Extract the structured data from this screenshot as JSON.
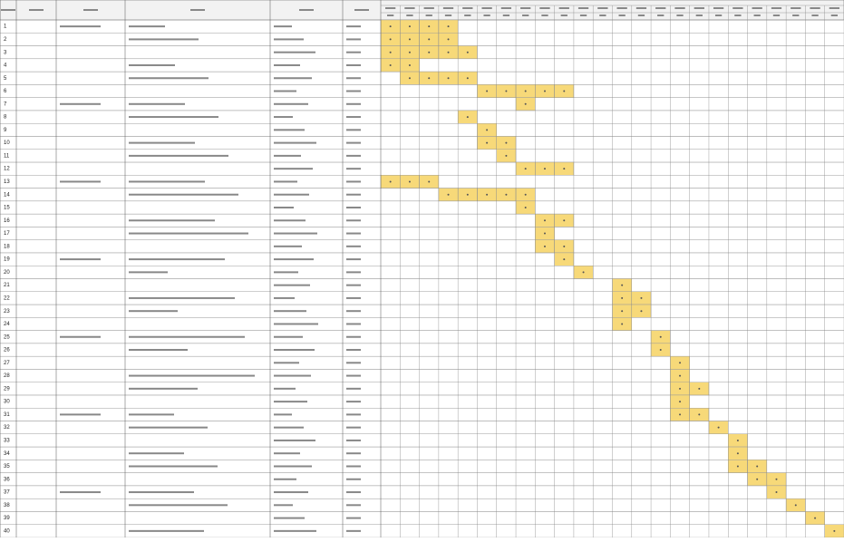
{
  "rows": [
    {
      "no": 1,
      "bars": [
        0,
        1,
        2,
        3
      ]
    },
    {
      "no": 2,
      "bars": [
        0,
        1,
        2,
        3
      ]
    },
    {
      "no": 3,
      "bars": [
        0,
        1,
        2,
        3,
        4
      ]
    },
    {
      "no": 4,
      "bars": [
        0,
        1
      ]
    },
    {
      "no": 5,
      "bars": [
        1,
        2,
        3,
        4
      ]
    },
    {
      "no": 6,
      "bars": [
        5,
        6,
        7,
        8,
        9
      ]
    },
    {
      "no": 7,
      "bars": [
        7
      ]
    },
    {
      "no": 8,
      "bars": [
        4
      ]
    },
    {
      "no": 9,
      "bars": [
        5
      ]
    },
    {
      "no": 10,
      "bars": [
        5,
        6
      ]
    },
    {
      "no": 11,
      "bars": [
        6
      ]
    },
    {
      "no": 12,
      "bars": [
        7,
        8,
        9
      ]
    },
    {
      "no": 13,
      "bars": [
        0,
        1,
        2
      ]
    },
    {
      "no": 14,
      "bars": [
        3,
        4,
        5,
        6,
        7
      ]
    },
    {
      "no": 15,
      "bars": [
        7
      ]
    },
    {
      "no": 16,
      "bars": [
        8,
        9
      ]
    },
    {
      "no": 17,
      "bars": [
        8
      ]
    },
    {
      "no": 18,
      "bars": [
        8,
        9
      ]
    },
    {
      "no": 19,
      "bars": [
        9
      ]
    },
    {
      "no": 20,
      "bars": [
        10
      ]
    },
    {
      "no": 21,
      "bars": [
        12
      ]
    },
    {
      "no": 22,
      "bars": [
        12,
        13
      ]
    },
    {
      "no": 23,
      "bars": [
        12,
        13
      ]
    },
    {
      "no": 24,
      "bars": [
        12
      ]
    },
    {
      "no": 25,
      "bars": [
        14
      ]
    },
    {
      "no": 26,
      "bars": [
        14
      ]
    },
    {
      "no": 27,
      "bars": [
        15
      ]
    },
    {
      "no": 28,
      "bars": [
        15
      ]
    },
    {
      "no": 29,
      "bars": [
        15,
        16
      ]
    },
    {
      "no": 30,
      "bars": [
        15
      ]
    },
    {
      "no": 31,
      "bars": [
        15,
        16
      ]
    },
    {
      "no": 32,
      "bars": [
        17
      ]
    },
    {
      "no": 33,
      "bars": [
        18
      ]
    },
    {
      "no": 34,
      "bars": [
        18
      ]
    },
    {
      "no": 35,
      "bars": [
        18,
        19
      ]
    },
    {
      "no": 36,
      "bars": [
        19,
        20
      ]
    },
    {
      "no": 37,
      "bars": [
        20
      ]
    },
    {
      "no": 38,
      "bars": [
        21
      ]
    },
    {
      "no": 39,
      "bars": [
        22
      ]
    },
    {
      "no": 40,
      "bars": [
        23
      ]
    }
  ]
}
